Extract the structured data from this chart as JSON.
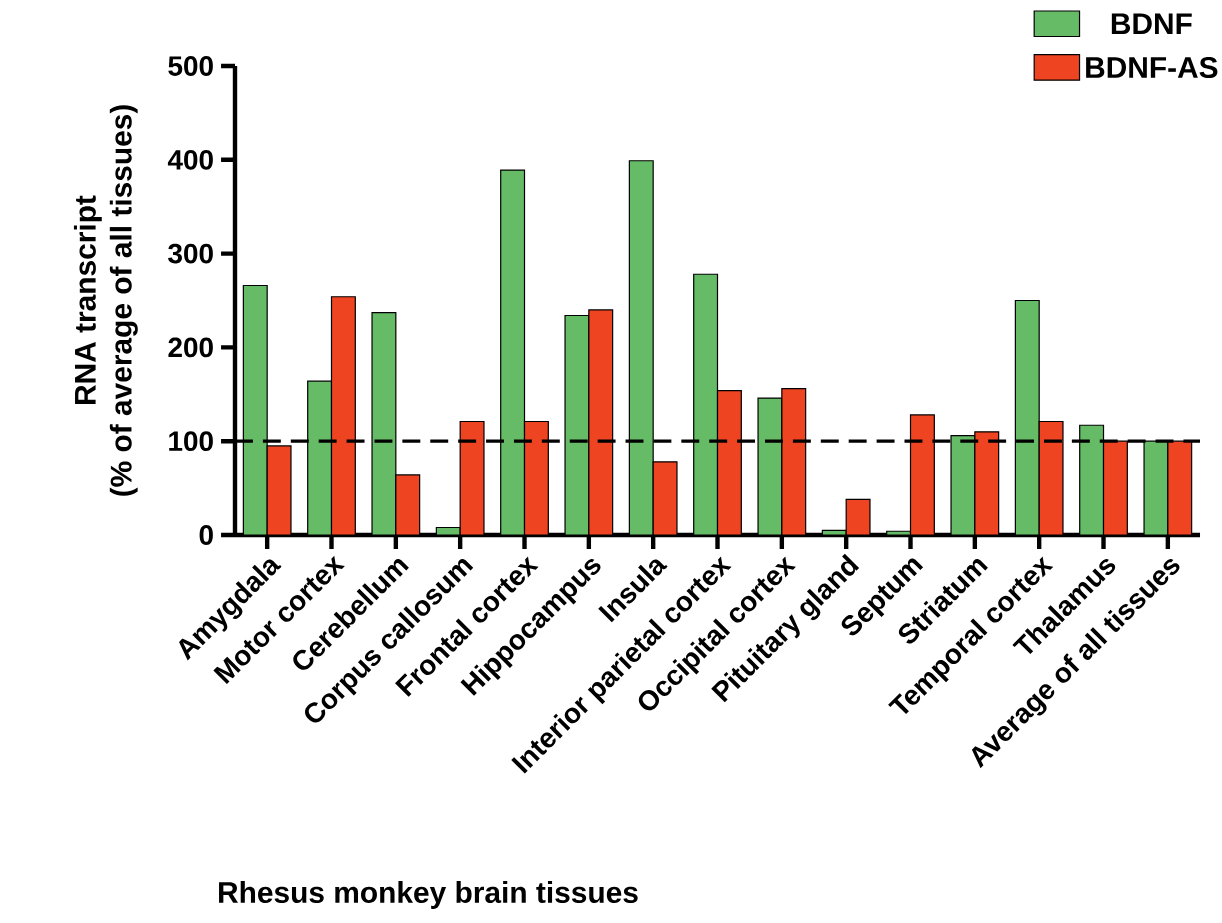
{
  "chart_data": {
    "type": "bar",
    "xlabel": "Rhesus monkey brain tissues",
    "ylabel": "RNA transcript\n(% of average of all tissues)",
    "categories": [
      "Amygdala",
      "Motor cortex",
      "Cerebellum",
      "Corpus callosum",
      "Frontal cortex",
      "Hippocampus",
      "Insula",
      "Interior parietal cortex",
      "Occipital cortex",
      "Pituitary gland",
      "Septum",
      "Striatum",
      "Temporal cortex",
      "Thalamus",
      "Average of all tissues"
    ],
    "series": [
      {
        "name": "BDNF",
        "color": "#66bb66",
        "values": [
          266,
          164,
          237,
          8,
          389,
          234,
          399,
          278,
          146,
          5,
          4,
          106,
          250,
          117,
          100
        ]
      },
      {
        "name": "BDNF-AS",
        "color": "#ee4422",
        "values": [
          95,
          254,
          64,
          121,
          121,
          240,
          78,
          154,
          156,
          38,
          128,
          110,
          121,
          100,
          100
        ]
      }
    ],
    "ylim": [
      0,
      500
    ],
    "yticks": [
      0,
      100,
      200,
      300,
      400,
      500
    ],
    "ref_lines": [
      {
        "axis": "y",
        "value": 100,
        "line_style": "dashed"
      }
    ],
    "legend": "top right",
    "grid": false
  }
}
